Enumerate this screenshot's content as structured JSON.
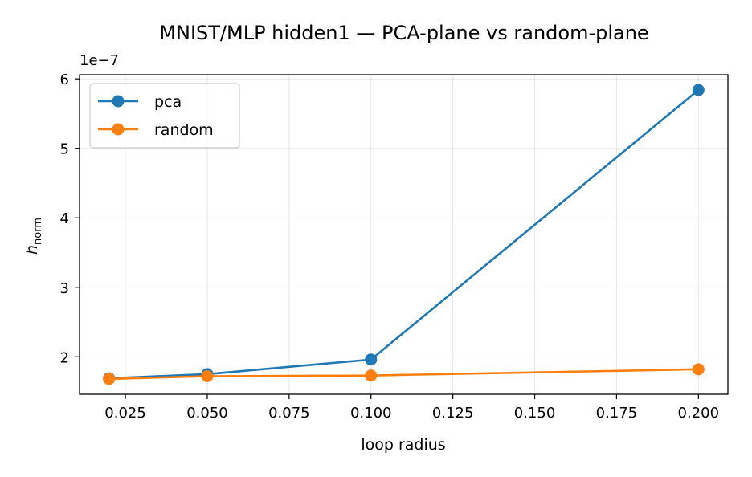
{
  "chart_data": {
    "type": "line",
    "title": "MNIST/MLP hidden1 — PCA-plane vs random-plane",
    "xlabel": "loop radius",
    "ylabel_main": "h",
    "ylabel_sub": "norm",
    "y_offset_label": "1e−7",
    "y_scale": 1e-07,
    "xlim": [
      0.011,
      0.209
    ],
    "ylim": [
      1.46e-07,
      6.06e-07
    ],
    "xticks": [
      0.025,
      0.05,
      0.075,
      0.1,
      0.125,
      0.15,
      0.175,
      0.2
    ],
    "xtick_labels": [
      "0.025",
      "0.050",
      "0.075",
      "0.100",
      "0.125",
      "0.150",
      "0.175",
      "0.200"
    ],
    "yticks": [
      2e-07,
      3e-07,
      4e-07,
      5e-07,
      6e-07
    ],
    "ytick_labels": [
      "2",
      "3",
      "4",
      "5",
      "6"
    ],
    "grid": true,
    "legend_position": "upper-left",
    "x": [
      0.02,
      0.05,
      0.1,
      0.2
    ],
    "series": [
      {
        "name": "pca",
        "color": "#1f77b4",
        "values": [
          1.69e-07,
          1.75e-07,
          1.96e-07,
          5.84e-07
        ]
      },
      {
        "name": "random",
        "color": "#ff7f0e",
        "values": [
          1.68e-07,
          1.72e-07,
          1.73e-07,
          1.82e-07
        ]
      }
    ]
  }
}
